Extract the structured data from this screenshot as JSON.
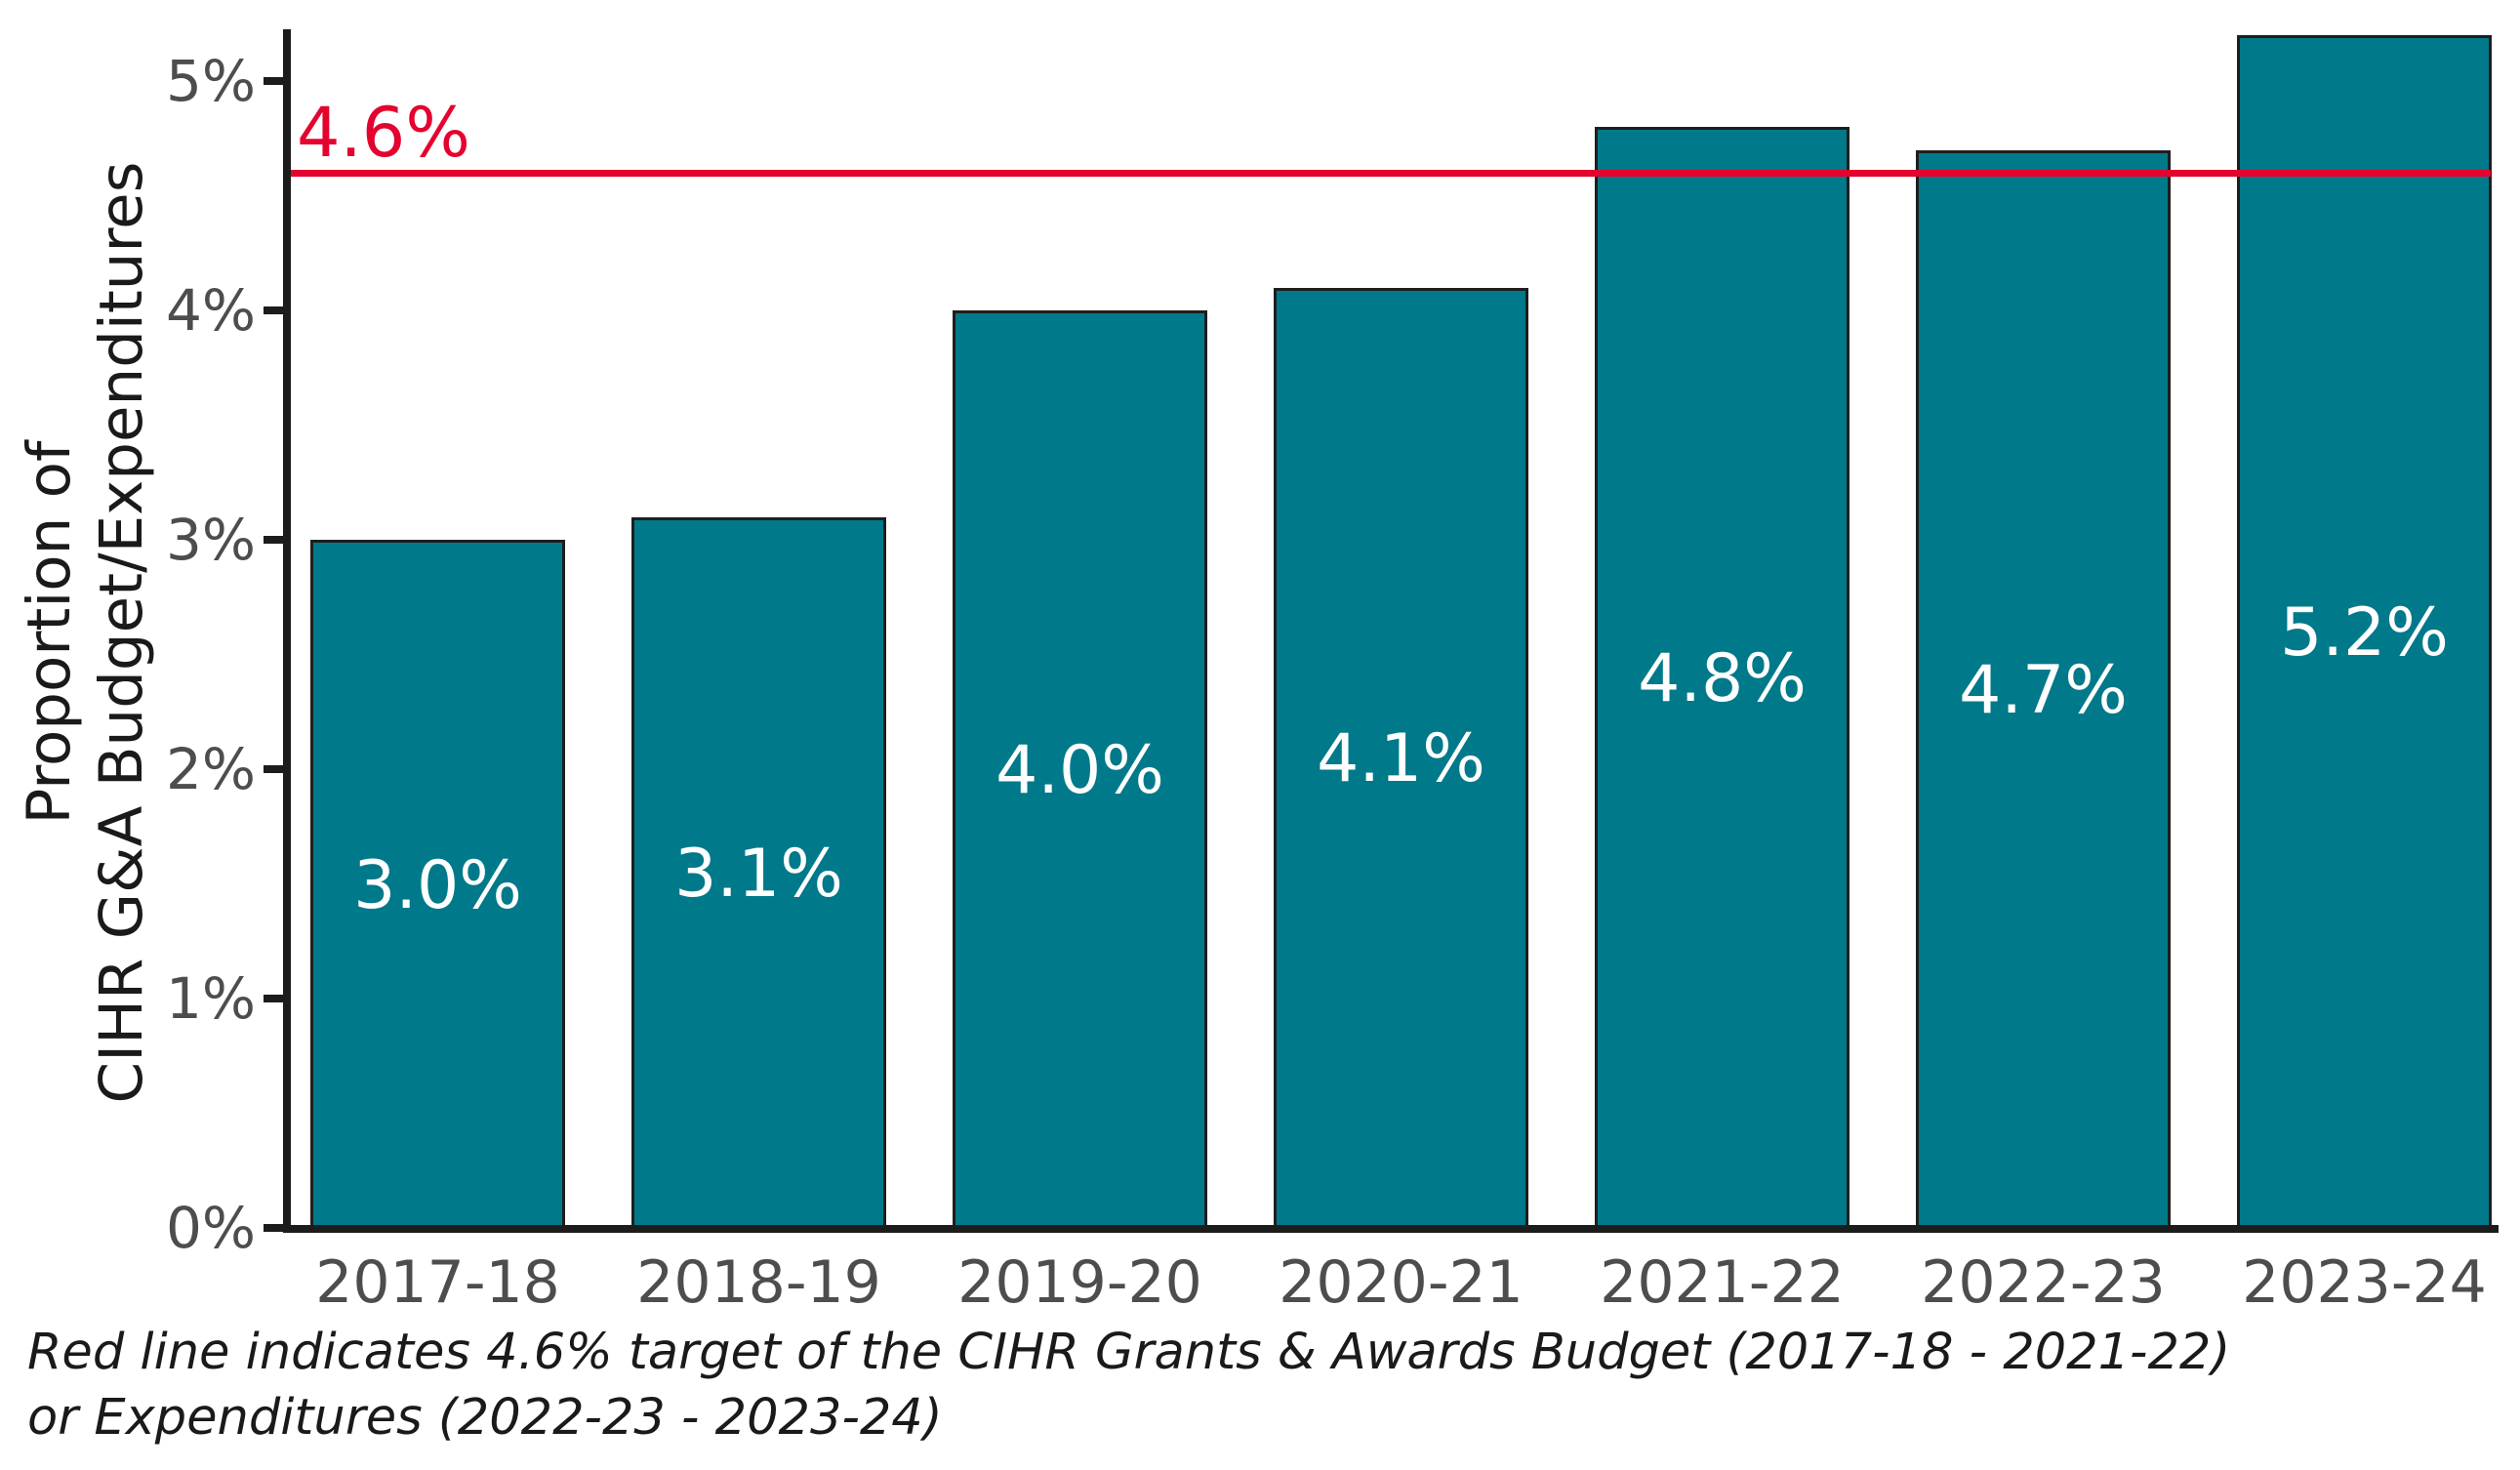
{
  "chart_data": {
    "type": "bar",
    "title": "",
    "xlabel": "",
    "ylabel": "Proportion of CIHR G&A Budget/Expenditures",
    "ylabel_lines": [
      "Proportion of",
      "CIHR G&A Budget/Expenditures"
    ],
    "categories": [
      "2017-18",
      "2018-19",
      "2019-20",
      "2020-21",
      "2021-22",
      "2022-23",
      "2023-24"
    ],
    "values": [
      3.0,
      3.1,
      4.0,
      4.1,
      4.8,
      4.7,
      5.2
    ],
    "bar_value_labels": [
      "3.0%",
      "3.1%",
      "4.0%",
      "4.1%",
      "4.8%",
      "4.7%",
      "5.2%"
    ],
    "ylim": [
      0,
      5.35
    ],
    "y_ticks": [
      {
        "value": 0,
        "label": "0%"
      },
      {
        "value": 1,
        "label": "1%"
      },
      {
        "value": 2,
        "label": "2%"
      },
      {
        "value": 3,
        "label": "3%"
      },
      {
        "value": 4,
        "label": "4%"
      },
      {
        "value": 5,
        "label": "5%"
      }
    ],
    "grid": false,
    "legend": "none",
    "reference_line": {
      "value": 4.6,
      "label": "4.6%"
    },
    "caption_lines": [
      "Red line indicates 4.6% target of the CIHR Grants & Awards Budget (2017-18 - 2021-22)",
      "or Expenditures (2022-23 - 2023-24)"
    ],
    "colors": {
      "bar_fill": "#00798a",
      "bar_border": "#1e1e1e",
      "axis": "#1c1c1c",
      "tick_text": "#4d4d4d",
      "bar_value_text": "#ffffff",
      "reference_line": "#e4032e"
    }
  }
}
